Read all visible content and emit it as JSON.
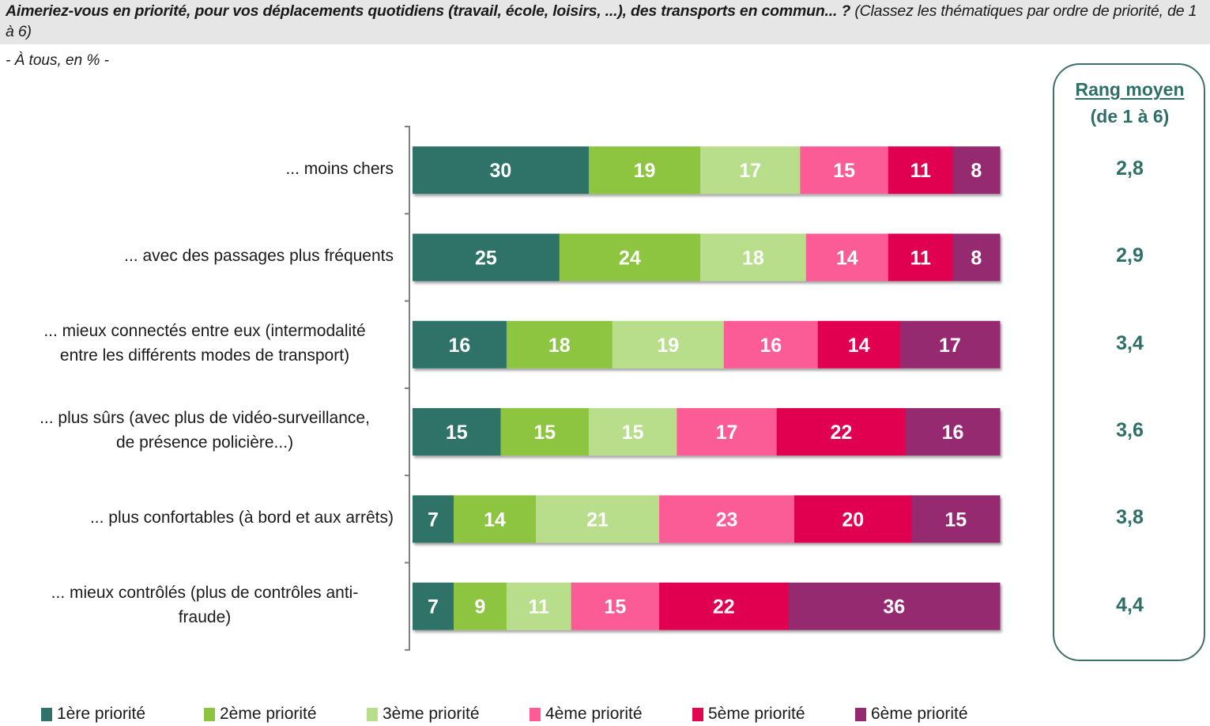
{
  "header": {
    "question": "Aimeriez-vous en priorité, pour vos déplacements quotidiens (travail, école, loisirs, ...), des transports en commun... ?",
    "instruction": " (Classez les thématiques par ordre de priorité, de 1 à 6)",
    "base": "- À tous, en % -"
  },
  "rank_panel": {
    "title": "Rang moyen",
    "subtitle": "(de 1 à 6)",
    "values": [
      "2,8",
      "2,9",
      "3,4",
      "3,6",
      "3,8",
      "4,4"
    ]
  },
  "chart_data": {
    "type": "bar",
    "orientation": "horizontal",
    "stacked": true,
    "title": "Aimeriez-vous en priorité, pour vos déplacements quotidiens (travail, école, loisirs, ...), des transports en commun... ?",
    "subtitle": "- À tous, en % -",
    "xlabel": "",
    "ylabel": "",
    "xlim": [
      0,
      100
    ],
    "grid": false,
    "legend_position": "bottom",
    "categories": [
      [
        "... moins chers"
      ],
      [
        "... avec des passages plus fréquents"
      ],
      [
        "... mieux connectés entre eux (intermodalité",
        "entre les différents modes de transport)"
      ],
      [
        "... plus sûrs (avec plus de vidéo-surveillance,",
        "de présence policière...)"
      ],
      [
        "... plus confortables (à bord et aux arrêts)"
      ],
      [
        "... mieux contrôlés (plus de contrôles anti-",
        "fraude)"
      ]
    ],
    "series": [
      {
        "name": "1ère priorité",
        "color": "#2e7268",
        "values": [
          30,
          25,
          16,
          15,
          7,
          7
        ]
      },
      {
        "name": "2ème priorité",
        "color": "#8dc43f",
        "values": [
          19,
          24,
          18,
          15,
          14,
          9
        ]
      },
      {
        "name": "3ème priorité",
        "color": "#b8de8c",
        "values": [
          17,
          18,
          19,
          15,
          21,
          11
        ]
      },
      {
        "name": "4ème priorité",
        "color": "#fb5c95",
        "values": [
          15,
          14,
          16,
          17,
          23,
          15
        ]
      },
      {
        "name": "5ème priorité",
        "color": "#e0064f",
        "values": [
          11,
          11,
          14,
          22,
          20,
          22
        ]
      },
      {
        "name": "6ème priorité",
        "color": "#952a70",
        "values": [
          8,
          8,
          17,
          16,
          15,
          36
        ]
      }
    ],
    "side_values": {
      "title": "Rang moyen (de 1 à 6)",
      "values": [
        2.8,
        2.9,
        3.4,
        3.6,
        3.8,
        4.4
      ]
    }
  }
}
